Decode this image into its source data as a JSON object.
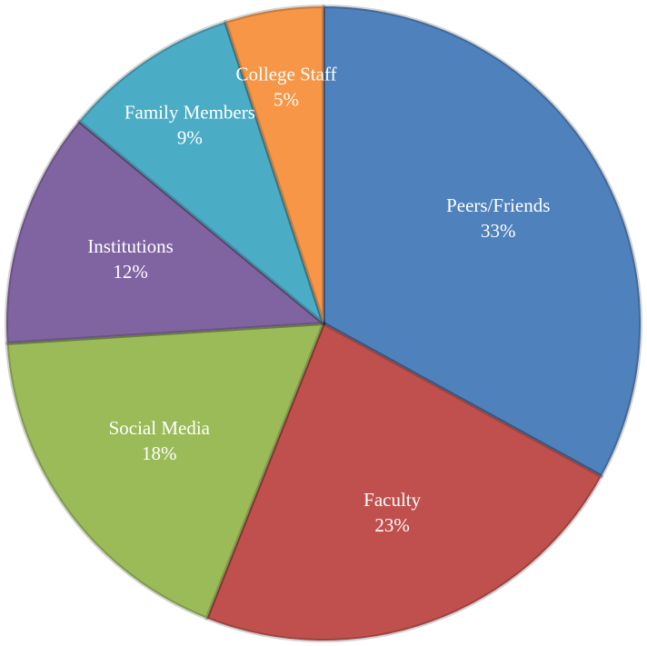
{
  "chart_data": {
    "type": "pie",
    "categories": [
      "Peers/Friends",
      "Faculty",
      "Social Media",
      "Institutions",
      "Family Members",
      "College Staff"
    ],
    "values": [
      33,
      23,
      18,
      12,
      9,
      5
    ],
    "value_labels": [
      "33%",
      "23%",
      "18%",
      "12%",
      "9%",
      "5%"
    ],
    "colors": [
      "#4f81bd",
      "#c0504d",
      "#9bbb59",
      "#8064a2",
      "#4bacc6",
      "#f79646"
    ]
  }
}
